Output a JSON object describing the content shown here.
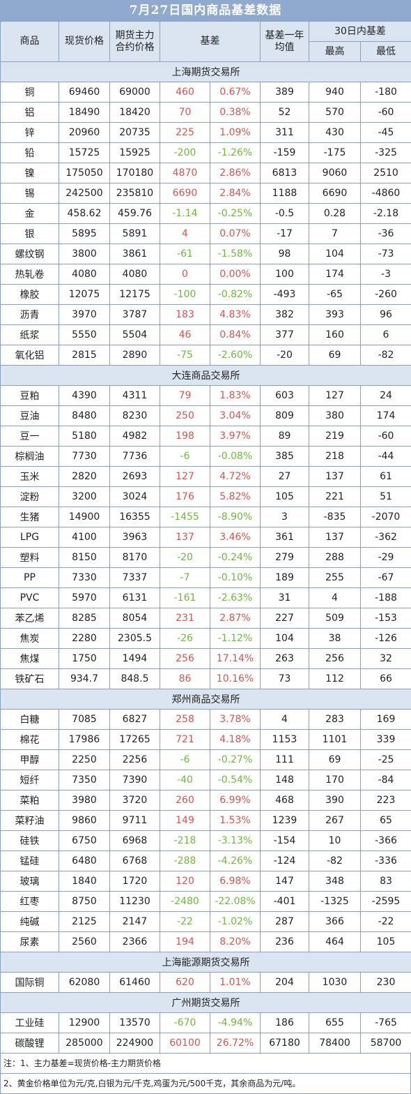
{
  "title": "7月27日国内商品基差数据",
  "headers": {
    "commodity": "商品",
    "spot_price": "现货价格",
    "futures_line1": "期货主力",
    "futures_line2": "合约价格",
    "basis": "基差",
    "avg_line1": "基差一年",
    "avg_line2": "均值",
    "range30": "30日内基差",
    "high": "最高",
    "low": "最低"
  },
  "sections": [
    {
      "name": "上海期货交易所",
      "rows": [
        [
          "铜",
          "69460",
          "69000",
          "460",
          "0.67%",
          "389",
          "940",
          "-180"
        ],
        [
          "铝",
          "18490",
          "18420",
          "70",
          "0.38%",
          "52",
          "570",
          "-60"
        ],
        [
          "锌",
          "20960",
          "20735",
          "225",
          "1.09%",
          "311",
          "430",
          "-45"
        ],
        [
          "铅",
          "15725",
          "15925",
          "-200",
          "-1.26%",
          "-159",
          "-175",
          "-325"
        ],
        [
          "镍",
          "175050",
          "170180",
          "4870",
          "2.86%",
          "6813",
          "9060",
          "2510"
        ],
        [
          "锡",
          "242500",
          "235810",
          "6690",
          "2.84%",
          "1188",
          "6690",
          "-4860"
        ],
        [
          "金",
          "458.62",
          "459.76",
          "-1.14",
          "-0.25%",
          "-0.5",
          "0.28",
          "-2.18"
        ],
        [
          "银",
          "5895",
          "5891",
          "4",
          "0.07%",
          "-17",
          "7",
          "-36"
        ],
        [
          "螺纹钢",
          "3800",
          "3861",
          "-61",
          "-1.58%",
          "98",
          "104",
          "-73"
        ],
        [
          "热轧卷",
          "4080",
          "4080",
          "0",
          "0.00%",
          "100",
          "174",
          "-3"
        ],
        [
          "橡胶",
          "12075",
          "12175",
          "-100",
          "-0.82%",
          "-493",
          "-65",
          "-260"
        ],
        [
          "沥青",
          "3970",
          "3787",
          "183",
          "4.83%",
          "382",
          "393",
          "96"
        ],
        [
          "纸浆",
          "5550",
          "5504",
          "46",
          "0.84%",
          "377",
          "160",
          "6"
        ],
        [
          "氧化铝",
          "2815",
          "2890",
          "-75",
          "-2.60%",
          "-20",
          "69",
          "-82"
        ]
      ]
    },
    {
      "name": "大连商品交易所",
      "rows": [
        [
          "豆粕",
          "4390",
          "4311",
          "79",
          "1.83%",
          "603",
          "127",
          "24"
        ],
        [
          "豆油",
          "8480",
          "8230",
          "250",
          "3.04%",
          "809",
          "380",
          "174"
        ],
        [
          "豆一",
          "5180",
          "4982",
          "198",
          "3.97%",
          "89",
          "219",
          "-60"
        ],
        [
          "棕榈油",
          "7730",
          "7736",
          "-6",
          "-0.08%",
          "385",
          "218",
          "-44"
        ],
        [
          "玉米",
          "2820",
          "2693",
          "127",
          "4.72%",
          "27",
          "137",
          "61"
        ],
        [
          "淀粉",
          "3200",
          "3024",
          "176",
          "5.82%",
          "105",
          "221",
          "51"
        ],
        [
          "生猪",
          "14900",
          "16355",
          "-1455",
          "-8.90%",
          "3",
          "-835",
          "-2070"
        ],
        [
          "LPG",
          "4100",
          "3963",
          "137",
          "3.46%",
          "361",
          "137",
          "-362"
        ],
        [
          "塑料",
          "8150",
          "8170",
          "-20",
          "-0.24%",
          "279",
          "288",
          "-29"
        ],
        [
          "PP",
          "7330",
          "7337",
          "-7",
          "-0.10%",
          "189",
          "255",
          "-67"
        ],
        [
          "PVC",
          "5970",
          "6131",
          "-161",
          "-2.63%",
          "31",
          "4",
          "-188"
        ],
        [
          "苯乙烯",
          "8285",
          "8054",
          "231",
          "2.87%",
          "227",
          "509",
          "-153"
        ],
        [
          "焦炭",
          "2280",
          "2305.5",
          "-26",
          "-1.12%",
          "104",
          "38",
          "-126"
        ],
        [
          "焦煤",
          "1750",
          "1494",
          "256",
          "17.14%",
          "263",
          "256",
          "32"
        ],
        [
          "铁矿石",
          "934.7",
          "848.5",
          "86",
          "10.16%",
          "73",
          "112",
          "66"
        ]
      ]
    },
    {
      "name": "郑州商品交易所",
      "rows": [
        [
          "白糖",
          "7085",
          "6827",
          "258",
          "3.78%",
          "4",
          "283",
          "169"
        ],
        [
          "棉花",
          "17986",
          "17265",
          "721",
          "4.18%",
          "1153",
          "1101",
          "339"
        ],
        [
          "甲醇",
          "2250",
          "2256",
          "-6",
          "-0.27%",
          "111",
          "69",
          "-25"
        ],
        [
          "短纤",
          "7350",
          "7390",
          "-40",
          "-0.54%",
          "148",
          "170",
          "-84"
        ],
        [
          "菜粕",
          "3980",
          "3720",
          "260",
          "6.99%",
          "468",
          "390",
          "223"
        ],
        [
          "菜籽油",
          "9860",
          "9711",
          "149",
          "1.53%",
          "1239",
          "267",
          "65"
        ],
        [
          "硅铁",
          "6750",
          "6968",
          "-218",
          "-3.13%",
          "-154",
          "10",
          "-366"
        ],
        [
          "锰硅",
          "6480",
          "6768",
          "-288",
          "-4.26%",
          "-124",
          "-82",
          "-336"
        ],
        [
          "玻璃",
          "1840",
          "1720",
          "120",
          "6.98%",
          "147",
          "348",
          "83"
        ],
        [
          "红枣",
          "8750",
          "11230",
          "-2480",
          "-22.08%",
          "-401",
          "-1325",
          "-2595"
        ],
        [
          "纯碱",
          "2125",
          "2147",
          "-22",
          "-1.02%",
          "287",
          "366",
          "-22"
        ],
        [
          "尿素",
          "2560",
          "2366",
          "194",
          "8.20%",
          "236",
          "464",
          "105"
        ]
      ]
    },
    {
      "name": "上海能源期货交易所",
      "rows": [
        [
          "国际铜",
          "62080",
          "61460",
          "620",
          "1.01%",
          "204",
          "1030",
          "230"
        ]
      ]
    },
    {
      "name": "广州期货交易所",
      "rows": [
        [
          "工业硅",
          "12900",
          "13570",
          "-670",
          "-4.94%",
          "186",
          "655",
          "-765"
        ],
        [
          "碳酸锂",
          "285000",
          "224900",
          "60100",
          "26.72%",
          "67180",
          "78400",
          "58700"
        ]
      ]
    }
  ],
  "notes": [
    "注：1、主力基差=现货价格-主力期货价格",
    "2、黄金价格单位为元/克,白银为元/千克,鸡蛋为元/500千克，其余商品为元/吨。"
  ],
  "colors": {
    "positive": "#d9534f",
    "negative": "#6fb83c",
    "header_bg": "#dbe5f1",
    "title_bg": "#8fa9cf"
  }
}
